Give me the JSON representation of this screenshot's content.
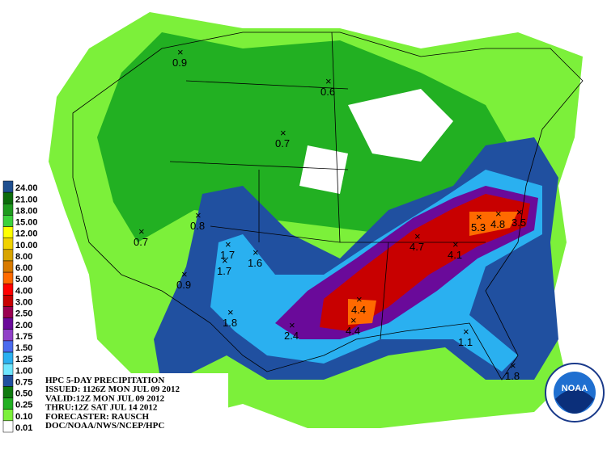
{
  "header": {
    "lines": [
      "HPC 5-DAY PRECIPITATION",
      "ISSUED: 1126Z MON JUL 09 2012",
      "VALID:12Z MON JUL 09 2012",
      "THRU:12Z SAT JUL 14 2012",
      "FORECASTER: RAUSCH",
      "DOC/NOAA/NWS/NCEP/HPC"
    ]
  },
  "legend": {
    "items": [
      {
        "label": "24.00",
        "color": "#1f4f8f"
      },
      {
        "label": "21.00",
        "color": "#0b6b0b"
      },
      {
        "label": "18.00",
        "color": "#1e9a1e"
      },
      {
        "label": "15.00",
        "color": "#3cd23c"
      },
      {
        "label": "12.00",
        "color": "#ffff00"
      },
      {
        "label": "10.00",
        "color": "#f0d200"
      },
      {
        "label": "8.00",
        "color": "#d8a400"
      },
      {
        "label": "6.00",
        "color": "#d87a00"
      },
      {
        "label": "5.00",
        "color": "#ff6a00"
      },
      {
        "label": "4.00",
        "color": "#ff0000"
      },
      {
        "label": "3.00",
        "color": "#c80000"
      },
      {
        "label": "2.50",
        "color": "#9a0050"
      },
      {
        "label": "2.00",
        "color": "#6a0a9a"
      },
      {
        "label": "1.75",
        "color": "#9040c8"
      },
      {
        "label": "1.50",
        "color": "#4a6aee"
      },
      {
        "label": "1.25",
        "color": "#2ab0f0"
      },
      {
        "label": "1.00",
        "color": "#6ee6ff"
      },
      {
        "label": "0.75",
        "color": "#2050a0"
      },
      {
        "label": "0.50",
        "color": "#0f7a0f"
      },
      {
        "label": "0.25",
        "color": "#22b022"
      },
      {
        "label": "0.10",
        "color": "#7cf03a"
      },
      {
        "label": "0.01",
        "color": "#ffffff"
      }
    ]
  },
  "maxima": [
    "0.9",
    "0.6",
    "0.7",
    "0.8",
    "0.7",
    "1.7",
    "1.7",
    "1.6",
    "0.9",
    "1.8",
    "2.4",
    "4.4",
    "4.4",
    "4.7",
    "4.1",
    "5.3",
    "4.8",
    "3.5",
    "1.1",
    "1.8"
  ],
  "logo": {
    "text": "NOAA"
  }
}
